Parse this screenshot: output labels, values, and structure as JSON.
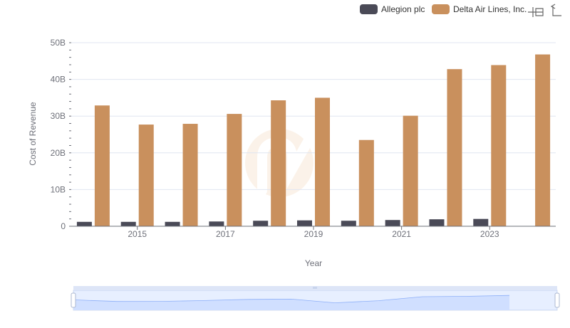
{
  "chart_data": {
    "type": "bar",
    "title": "",
    "xlabel": "Year",
    "ylabel": "Cost of Revenue",
    "categories": [
      "2014",
      "2015",
      "2016",
      "2017",
      "2018",
      "2019",
      "2020",
      "2021",
      "2022",
      "2023",
      "2024"
    ],
    "x_tick_labels": [
      "2015",
      "2017",
      "2019",
      "2021",
      "2023"
    ],
    "y_ticks": [
      0,
      10,
      20,
      30,
      40,
      50
    ],
    "y_tick_labels": [
      "0",
      "10B",
      "20B",
      "30B",
      "40B",
      "50B"
    ],
    "ylim": [
      0,
      50
    ],
    "y_unit": "billions",
    "grid": true,
    "legend_position": "top-right",
    "series": [
      {
        "name": "Allegion plc",
        "color": "#4a4a57",
        "values": [
          1.2,
          1.2,
          1.2,
          1.3,
          1.5,
          1.6,
          1.5,
          1.7,
          1.9,
          2.0,
          null
        ]
      },
      {
        "name": "Delta Air Lines, Inc.",
        "color": "#c9905d",
        "values": [
          32.9,
          27.7,
          27.9,
          30.6,
          34.3,
          35.0,
          23.5,
          30.1,
          42.8,
          43.9,
          46.8
        ]
      }
    ]
  },
  "toolbar": {
    "zoom_icon": "zoom-icon",
    "restore_icon": "restore-icon"
  },
  "datazoom": {
    "range_start_percent": 0,
    "range_end_percent": 100,
    "fill_color": "#e3ebff",
    "line_color": "#8fb0f7"
  }
}
